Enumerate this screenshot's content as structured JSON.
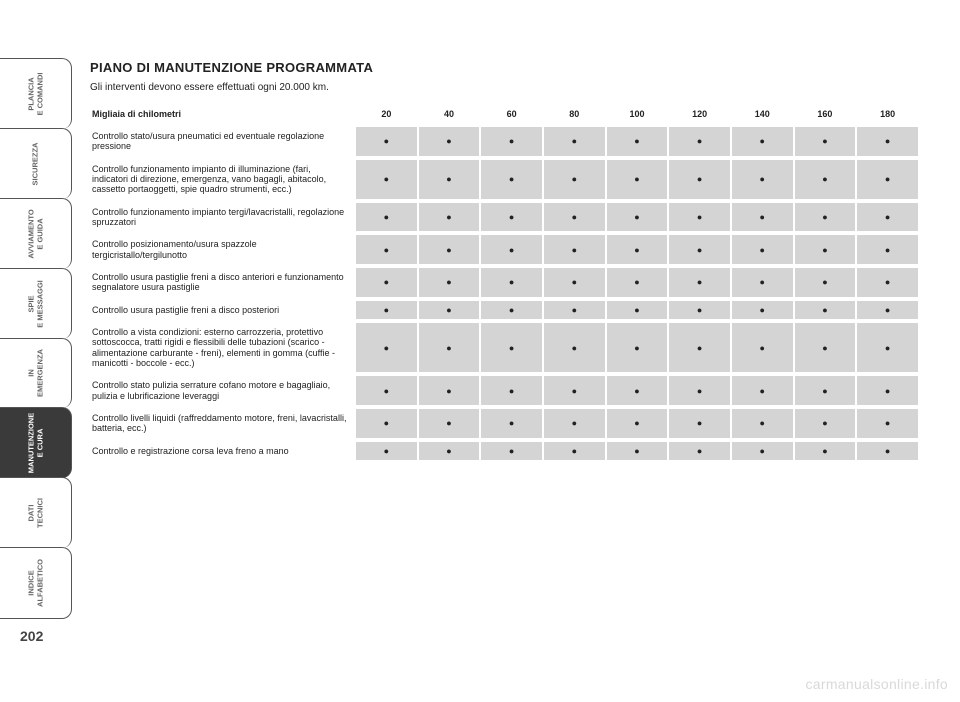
{
  "page_number": "202",
  "watermark": "carmanualsonline.info",
  "tabs": [
    {
      "label": "PLANCIA<br>E COMANDI",
      "active": false
    },
    {
      "label": "SICUREZZA",
      "active": false
    },
    {
      "label": "AVVIAMENTO<br>E GUIDA",
      "active": false
    },
    {
      "label": "SPIE<br>E MESSAGGI",
      "active": false
    },
    {
      "label": "IN<br>EMERGENZA",
      "active": false
    },
    {
      "label": "MANUTENZIONE<br>E CURA",
      "active": true
    },
    {
      "label": "DATI<br>TECNICI",
      "active": false
    },
    {
      "label": "INDICE<br>ALFABETICO",
      "active": false
    }
  ],
  "section": {
    "title": "PIANO DI MANUTENZIONE PROGRAMMATA",
    "intro": "Gli interventi devono essere effettuati ogni 20.000 km."
  },
  "table": {
    "header_label": "Migliaia di chilometri",
    "km_columns": [
      "20",
      "40",
      "60",
      "80",
      "100",
      "120",
      "140",
      "160",
      "180"
    ],
    "rows": [
      {
        "op": "Controllo stato/usura pneumatici ed eventuale regolazione pressione",
        "marks": [
          1,
          1,
          1,
          1,
          1,
          1,
          1,
          1,
          1
        ]
      },
      {
        "op": "Controllo funzionamento impianto di illuminazione (fari, indicatori di direzione, emergenza, vano bagagli, abitacolo, cassetto portaoggetti, spie quadro strumenti, ecc.)",
        "marks": [
          1,
          1,
          1,
          1,
          1,
          1,
          1,
          1,
          1
        ]
      },
      {
        "op": "Controllo funzionamento impianto tergi/lavacristalli, regolazione spruzzatori",
        "marks": [
          1,
          1,
          1,
          1,
          1,
          1,
          1,
          1,
          1
        ]
      },
      {
        "op": "Controllo posizionamento/usura spazzole tergicristallo/tergilunotto",
        "marks": [
          1,
          1,
          1,
          1,
          1,
          1,
          1,
          1,
          1
        ]
      },
      {
        "op": "Controllo usura pastiglie freni a disco anteriori e funzionamento segnalatore usura pastiglie",
        "marks": [
          1,
          1,
          1,
          1,
          1,
          1,
          1,
          1,
          1
        ]
      },
      {
        "op": "Controllo usura pastiglie freni a disco posteriori",
        "marks": [
          1,
          1,
          1,
          1,
          1,
          1,
          1,
          1,
          1
        ]
      },
      {
        "op": "Controllo a vista condizioni: esterno carrozzeria, protettivo sottoscocca, tratti rigidi e flessibili delle tubazioni (scarico - alimentazione carburante - freni), elementi in gomma (cuffie - manicotti - boccole - ecc.)",
        "marks": [
          1,
          1,
          1,
          1,
          1,
          1,
          1,
          1,
          1
        ]
      },
      {
        "op": "Controllo stato pulizia serrature cofano motore e bagagliaio, pulizia e lubrificazione leveraggi",
        "marks": [
          1,
          1,
          1,
          1,
          1,
          1,
          1,
          1,
          1
        ]
      },
      {
        "op": "Controllo livelli liquidi (raffreddamento motore, freni, lavacristalli, batteria, ecc.)",
        "marks": [
          1,
          1,
          1,
          1,
          1,
          1,
          1,
          1,
          1
        ]
      },
      {
        "op": "Controllo e registrazione corsa leva freno a mano",
        "marks": [
          1,
          1,
          1,
          1,
          1,
          1,
          1,
          1,
          1
        ]
      }
    ],
    "dot_glyph": "●",
    "col_bg": "#d4d4d4",
    "text_color": "#222222"
  }
}
